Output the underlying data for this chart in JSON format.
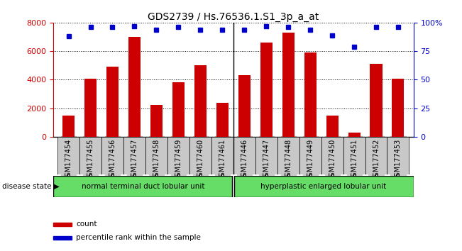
{
  "title": "GDS2739 / Hs.76536.1.S1_3p_a_at",
  "categories": [
    "GSM177454",
    "GSM177455",
    "GSM177456",
    "GSM177457",
    "GSM177458",
    "GSM177459",
    "GSM177460",
    "GSM177461",
    "GSM177446",
    "GSM177447",
    "GSM177448",
    "GSM177449",
    "GSM177450",
    "GSM177451",
    "GSM177452",
    "GSM177453"
  ],
  "counts": [
    1500,
    4050,
    4900,
    7000,
    2250,
    3800,
    5000,
    2400,
    4300,
    6600,
    7300,
    5900,
    1500,
    300,
    5100,
    4050
  ],
  "percentiles": [
    88,
    96,
    96,
    97,
    94,
    96,
    94,
    94,
    94,
    97,
    96,
    94,
    89,
    79,
    96,
    96
  ],
  "bar_color": "#cc0000",
  "dot_color": "#0000cc",
  "ylim_left": [
    0,
    8000
  ],
  "ylim_right": [
    0,
    100
  ],
  "yticks_left": [
    0,
    2000,
    4000,
    6000,
    8000
  ],
  "yticks_right": [
    0,
    25,
    50,
    75,
    100
  ],
  "ytick_labels_right": [
    "0",
    "25",
    "50",
    "75",
    "100%"
  ],
  "group1_label": "normal terminal duct lobular unit",
  "group2_label": "hyperplastic enlarged lobular unit",
  "group1_count": 8,
  "group2_count": 8,
  "disease_label": "disease state",
  "legend_count_label": "count",
  "legend_pct_label": "percentile rank within the sample",
  "group_color": "#66dd66",
  "tick_bg_color": "#c8c8c8",
  "background_color": "#ffffff",
  "title_fontsize": 10,
  "tick_fontsize": 7,
  "bar_width": 0.55
}
